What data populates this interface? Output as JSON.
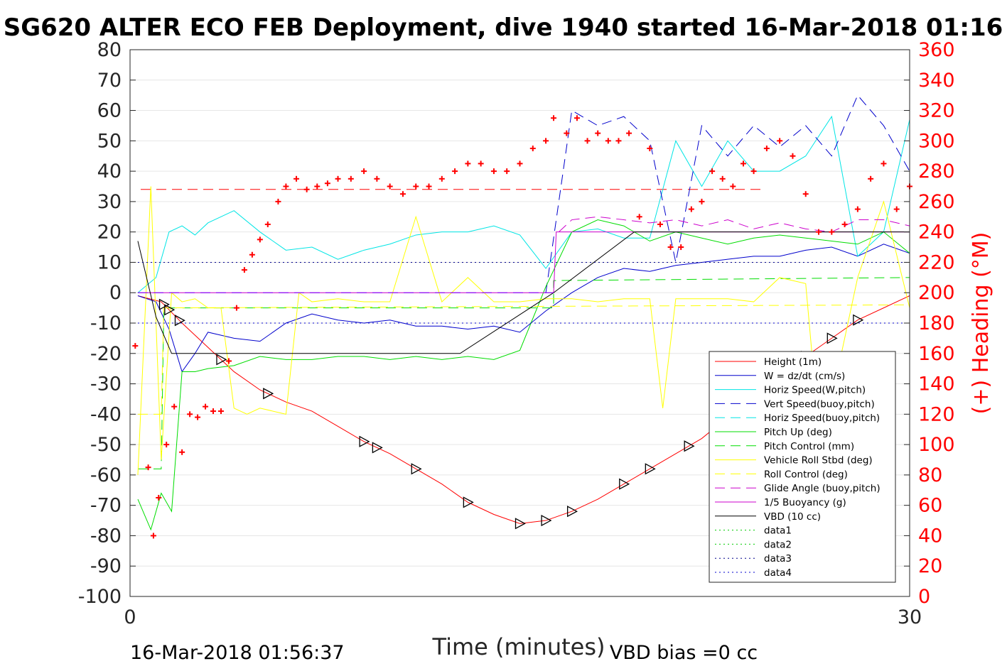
{
  "chart_data": {
    "type": "line",
    "title": "SG620 ALTER ECO FEB Deployment, dive 1940 started 16-Mar-2018 01:16",
    "xlabel": "Time (minutes)",
    "ylabel_right": "(+) Heading (°M)",
    "xlim": [
      0,
      30
    ],
    "ylim": [
      -100,
      80
    ],
    "ylim_right": [
      0,
      360
    ],
    "xticks": [
      "0",
      "30"
    ],
    "yticks": [
      "80",
      "70",
      "60",
      "50",
      "40",
      "30",
      "20",
      "10",
      "0",
      "-10",
      "-20",
      "-30",
      "-40",
      "-50",
      "-60",
      "-70",
      "-80",
      "-90",
      "-100"
    ],
    "yticks_right": [
      "360",
      "340",
      "320",
      "300",
      "280",
      "260",
      "240",
      "220",
      "200",
      "180",
      "160",
      "140",
      "120",
      "100",
      "80",
      "60",
      "40",
      "20",
      "0"
    ],
    "footer_left": "16-Mar-2018 01:56:37",
    "footer_right": "VBD bias =0 cc",
    "colors": {
      "red": "#ff0000",
      "blue": "#0000cc",
      "cyan": "#00e5e5",
      "green": "#00dd00",
      "yellow": "#ffff00",
      "magenta": "#cc00cc",
      "purple": "#7f00ff",
      "black": "#000000",
      "navy": "#00008b"
    },
    "legend": [
      {
        "label": "Height (1m)",
        "color": "#ff0000",
        "style": "solid"
      },
      {
        "label": "W = dz/dt (cm/s)",
        "color": "#0000cc",
        "style": "solid"
      },
      {
        "label": "Horiz Speed(W,pitch)",
        "color": "#00e5e5",
        "style": "solid"
      },
      {
        "label": "Vert Speed(buoy,pitch)",
        "color": "#0000cc",
        "style": "dashed"
      },
      {
        "label": "Horiz Speed(buoy,pitch)",
        "color": "#00e5e5",
        "style": "dashed"
      },
      {
        "label": "Pitch Up (deg)",
        "color": "#00dd00",
        "style": "solid"
      },
      {
        "label": "Pitch Control (mm)",
        "color": "#00dd00",
        "style": "dashed"
      },
      {
        "label": "Vehicle Roll Stbd (deg)",
        "color": "#ffff00",
        "style": "solid"
      },
      {
        "label": "Roll Control (deg)",
        "color": "#ffff00",
        "style": "dashed"
      },
      {
        "label": "Glide Angle (buoy,pitch)",
        "color": "#cc00cc",
        "style": "dashed"
      },
      {
        "label": "1/5 Buoyancy (g)",
        "color": "#cc00cc",
        "style": "solid"
      },
      {
        "label": "VBD (10 cc)",
        "color": "#000000",
        "style": "solid"
      },
      {
        "label": "data1",
        "color": "#00cc00",
        "style": "dotted"
      },
      {
        "label": "data2",
        "color": "#00cc00",
        "style": "dotted"
      },
      {
        "label": "data3",
        "color": "#00008b",
        "style": "dotted"
      },
      {
        "label": "data4",
        "color": "#0000cc",
        "style": "dotted"
      }
    ],
    "series": [
      {
        "name": "Height (1m)",
        "color": "#ff0000",
        "style": "solid",
        "x": [
          0.3,
          1.2,
          2.0,
          3.0,
          4.0,
          5.0,
          6.0,
          7.0,
          8.0,
          9.0,
          10.0,
          11.0,
          12.0,
          13.0,
          14.0,
          15.0,
          16.0,
          17.0,
          18.0,
          19.0,
          20.0,
          21.0,
          22.0,
          23.0,
          24.0,
          25.0,
          26.0,
          27.0,
          28.0,
          29.0,
          30.0
        ],
        "y": [
          -1,
          -3,
          -10,
          -18,
          -26,
          -32,
          -36,
          -39,
          -44,
          -49,
          -53,
          -58,
          -63,
          -69,
          -73,
          -76,
          -75,
          -72,
          -68,
          -63,
          -58,
          -53,
          -48,
          -41,
          -34,
          -26,
          -21,
          -15,
          -9,
          -5,
          -1
        ]
      },
      {
        "name": "W = dz/dt (cm/s)",
        "color": "#0000cc",
        "style": "solid",
        "x": [
          0.3,
          1.0,
          1.5,
          2.0,
          2.5,
          3.0,
          3.5,
          4.0,
          5.0,
          6.0,
          7.0,
          8.0,
          9.0,
          10.0,
          11.0,
          12.0,
          13.0,
          14.0,
          15.0,
          16.0,
          17.0,
          18.0,
          19.0,
          20.0,
          21.0,
          22.0,
          23.0,
          24.0,
          25.0,
          26.0,
          27.0,
          28.0,
          29.0,
          30.0
        ],
        "y": [
          -1,
          -3,
          -12,
          -26,
          -20,
          -13,
          -14,
          -15,
          -16,
          -10,
          -7,
          -9,
          -10,
          -9,
          -11,
          -11,
          -12,
          -11,
          -13,
          -6,
          0,
          5,
          8,
          7,
          9,
          10,
          11,
          12,
          12,
          14,
          15,
          12,
          16,
          13
        ]
      },
      {
        "name": "Horiz Speed(W,pitch)",
        "color": "#00e5e5",
        "style": "solid",
        "x": [
          0.3,
          1.0,
          1.5,
          2.0,
          2.5,
          3.0,
          4.0,
          5.0,
          6.0,
          7.0,
          8.0,
          9.0,
          10.0,
          11.0,
          12.0,
          13.0,
          14.0,
          15.0,
          16.0,
          17.0,
          18.0,
          19.0,
          20.0,
          21.0,
          22.0,
          23.0,
          24.0,
          25.0,
          26.0,
          27.0,
          28.0,
          29.0,
          30.0
        ],
        "y": [
          0,
          5,
          20,
          22,
          19,
          23,
          27,
          20,
          14,
          15,
          11,
          14,
          16,
          19,
          20,
          20,
          22,
          19,
          8,
          20,
          21,
          18,
          18,
          50,
          35,
          50,
          40,
          40,
          45,
          58,
          12,
          20,
          57
        ]
      },
      {
        "name": "Vert Speed(buoy,pitch)",
        "color": "#0000cc",
        "style": "dashed",
        "x": [
          16,
          17,
          18,
          19,
          20,
          21,
          22,
          23,
          24,
          25,
          26,
          27,
          28,
          29,
          30
        ],
        "y": [
          0,
          60,
          55,
          58,
          50,
          10,
          55,
          45,
          55,
          48,
          55,
          45,
          65,
          55,
          40
        ]
      },
      {
        "name": "Pitch Up (deg)",
        "color": "#00dd00",
        "style": "solid",
        "x": [
          0.3,
          0.8,
          1.2,
          1.6,
          2.0,
          2.5,
          3.0,
          4.0,
          5.0,
          6.0,
          7.0,
          8.0,
          9.0,
          10.0,
          11.0,
          12.0,
          13.0,
          14.0,
          15.0,
          16.0,
          17.0,
          18.0,
          19.0,
          20.0,
          21.0,
          22.0,
          23.0,
          24.0,
          25.0,
          26.0,
          27.0,
          28.0,
          29.0,
          30.0
        ],
        "y": [
          -68,
          -78,
          -66,
          -72,
          -26,
          -26,
          -25,
          -24,
          -21,
          -22,
          -22,
          -21,
          -21,
          -22,
          -21,
          -22,
          -21,
          -22,
          -19,
          2,
          20,
          24,
          22,
          17,
          20,
          18,
          16,
          18,
          19,
          18,
          17,
          16,
          20,
          13
        ]
      },
      {
        "name": "Pitch Control (mm)",
        "color": "#00dd00",
        "style": "dashed",
        "x": [
          0.3,
          1.2,
          1.3,
          16.3,
          16.3,
          30
        ],
        "y": [
          -58,
          -58,
          -5,
          -5,
          4,
          5
        ]
      },
      {
        "name": "Vehicle Roll Stbd (deg)",
        "color": "#ffff00",
        "style": "solid",
        "x": [
          0.3,
          0.8,
          1.2,
          1.6,
          2.0,
          2.5,
          3.0,
          3.5,
          4.0,
          4.5,
          5.0,
          6.0,
          6.5,
          7.0,
          8.0,
          9.0,
          10.0,
          11.0,
          12.0,
          13.0,
          14.0,
          15.0,
          16.0,
          17.0,
          18.0,
          19.0,
          20.0,
          20.5,
          21.0,
          22.0,
          23.0,
          24.0,
          25.0,
          26.0,
          26.5,
          27.0,
          28.0,
          29.0,
          30.0
        ],
        "y": [
          -60,
          35,
          -55,
          0,
          -3,
          -2,
          -5,
          -5,
          -38,
          -40,
          -38,
          -40,
          0,
          -3,
          -2,
          -3,
          -3,
          25,
          -3,
          5,
          -3,
          -3,
          -2,
          -2,
          -3,
          -2,
          -2,
          -38,
          -2,
          -2,
          -2,
          -3,
          5,
          3,
          -45,
          -35,
          5,
          30,
          -5
        ]
      },
      {
        "name": "Roll Control (deg)",
        "color": "#ffff00",
        "style": "dashed",
        "x": [
          0.3,
          1.2,
          1.3,
          30
        ],
        "y": [
          -40,
          -40,
          -5,
          -4
        ]
      },
      {
        "name": "Glide Angle (buoy,pitch)",
        "color": "#cc00cc",
        "style": "dashed",
        "x": [
          16.5,
          17,
          18,
          19,
          20,
          21,
          22,
          23,
          24,
          25,
          26,
          27,
          28,
          29,
          30
        ],
        "y": [
          20,
          24,
          25,
          24,
          23,
          24,
          22,
          24,
          21,
          23,
          21,
          20,
          24,
          24,
          22
        ]
      },
      {
        "name": "1/5 Buoyancy (g)",
        "color": "#cc00cc",
        "style": "solid",
        "x": [
          0.3,
          16.3,
          16.4,
          30
        ],
        "y": [
          0,
          0,
          20,
          20
        ]
      },
      {
        "name": "VBD (10 cc)",
        "color": "#000000",
        "style": "solid",
        "x": [
          0.3,
          1.0,
          1.6,
          2.0,
          12.7,
          16.3,
          19.4,
          30
        ],
        "y": [
          17,
          -8,
          -20,
          -20,
          -20,
          0,
          20,
          20
        ]
      },
      {
        "name": "data3",
        "color": "#00008b",
        "style": "dotted",
        "x": [
          0.3,
          30
        ],
        "y": [
          10,
          10
        ]
      },
      {
        "name": "data4",
        "color": "#0000cc",
        "style": "dotted",
        "x": [
          0.3,
          30
        ],
        "y": [
          -10,
          -10
        ]
      },
      {
        "name": "Glide Angle reference",
        "color": "#7f00ff",
        "style": "dashed",
        "x": [
          0.3,
          16.3
        ],
        "y": [
          0,
          0
        ]
      }
    ],
    "heading_ref": {
      "color": "#ff0000",
      "style": "dashed",
      "y": 268
    },
    "heading_points": {
      "color": "#ff0000",
      "x": [
        0.2,
        0.7,
        0.9,
        1.1,
        1.4,
        1.7,
        2.0,
        2.3,
        2.6,
        2.9,
        3.2,
        3.5,
        3.8,
        4.1,
        4.4,
        4.7,
        5.0,
        5.3,
        5.7,
        6.0,
        6.4,
        6.8,
        7.2,
        7.6,
        8.0,
        8.5,
        9.0,
        9.5,
        10.0,
        10.5,
        11.0,
        11.5,
        12.0,
        12.5,
        13.0,
        13.5,
        14.0,
        14.5,
        15.0,
        15.5,
        16.0,
        16.3,
        16.8,
        17.2,
        17.6,
        18.0,
        18.4,
        18.8,
        19.2,
        19.6,
        20.0,
        20.4,
        20.8,
        21.2,
        21.6,
        22.0,
        22.4,
        22.8,
        23.2,
        23.6,
        24.0,
        24.5,
        25.0,
        25.5,
        26.0,
        26.5,
        27.0,
        27.5,
        28.0,
        28.5,
        29.0,
        29.5,
        30.0
      ],
      "y": [
        165,
        85,
        40,
        65,
        100,
        125,
        95,
        120,
        118,
        125,
        122,
        122,
        155,
        190,
        215,
        225,
        235,
        245,
        260,
        270,
        275,
        268,
        270,
        272,
        275,
        275,
        280,
        275,
        270,
        265,
        270,
        270,
        275,
        280,
        285,
        285,
        280,
        280,
        285,
        295,
        300,
        315,
        305,
        315,
        300,
        305,
        300,
        300,
        305,
        250,
        295,
        245,
        230,
        230,
        255,
        260,
        280,
        275,
        270,
        285,
        280,
        295,
        300,
        290,
        265,
        240,
        240,
        245,
        255,
        275,
        285,
        255,
        270
      ]
    }
  }
}
